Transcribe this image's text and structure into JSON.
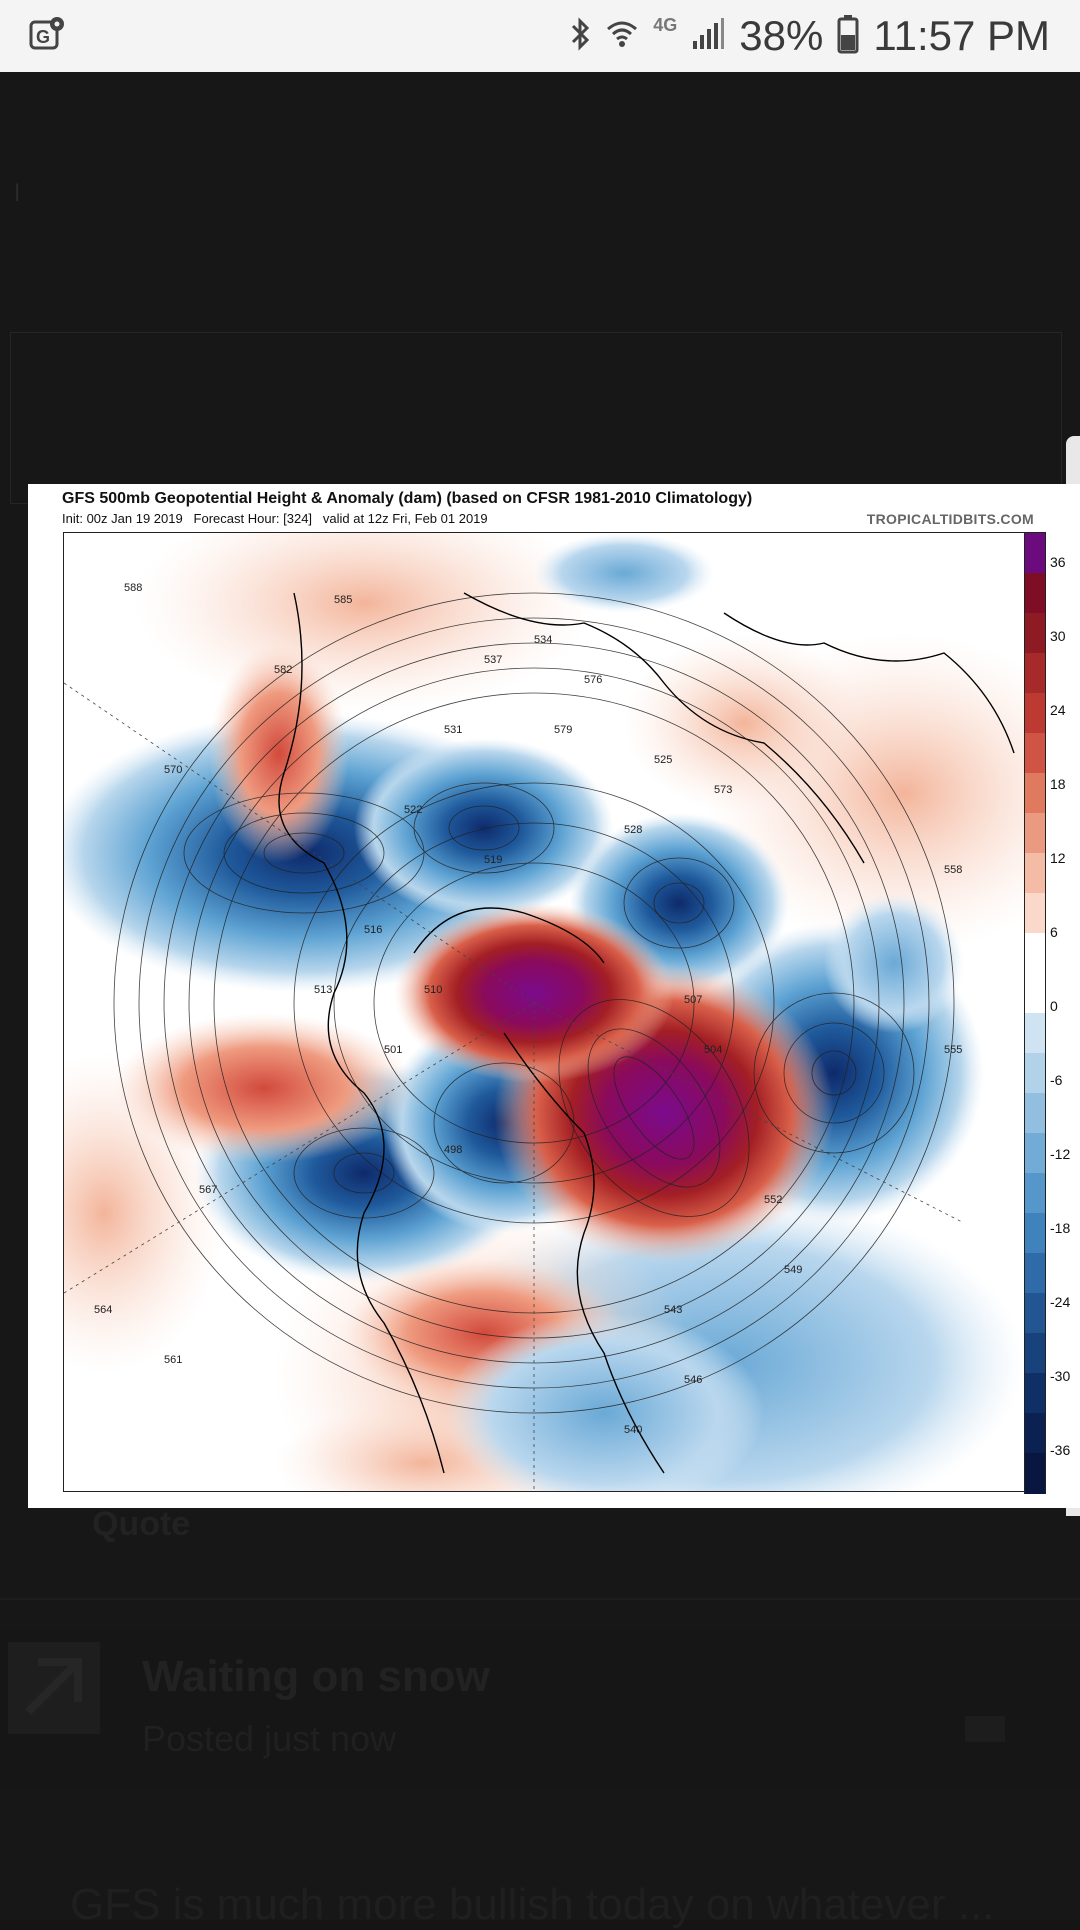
{
  "status_bar": {
    "battery": "38%",
    "time": "11:57 PM",
    "network": "4G",
    "icons": [
      "gallery-location-icon",
      "bluetooth-icon",
      "wifi-icon",
      "signal-icon",
      "battery-icon"
    ]
  },
  "background": {
    "quote_label": "Quote",
    "post_title": "Waiting on snow",
    "post_meta": "Posted just now",
    "bottom_text": "GFS is much more bullish today on whatever ..."
  },
  "image": {
    "title": "GFS 500mb Geopotential Height & Anomaly (dam) (based on CFSR 1981-2010 Climatology)",
    "subtitle": "Init: 00z Jan 19 2019   Forecast Hour: [324]   valid at 12z Fri, Feb 01 2019",
    "credit": "TROPICALTIDBITS.COM",
    "colorbar_labels": [
      "36",
      "30",
      "24",
      "18",
      "12",
      "6",
      "0",
      "-6",
      "-12",
      "-18",
      "-24",
      "-30",
      "-36"
    ],
    "contour_labels": [
      "588",
      "585",
      "582",
      "579",
      "576",
      "573",
      "570",
      "567",
      "564",
      "561",
      "558",
      "555",
      "552",
      "549",
      "546",
      "543",
      "540",
      "537",
      "534",
      "531",
      "528",
      "525",
      "522",
      "519",
      "516",
      "513",
      "510",
      "507",
      "504",
      "501",
      "498"
    ],
    "colors": {
      "positive_max": "#7a0b8c",
      "positive_high": "#8e1a23",
      "positive_mid": "#d95c4a",
      "positive_low": "#f7cbb6",
      "neutral": "#ffffff",
      "negative_low": "#c6dff0",
      "negative_mid": "#5a9fd0",
      "negative_high": "#1d4e8f",
      "negative_max": "#0c1f5e"
    }
  }
}
